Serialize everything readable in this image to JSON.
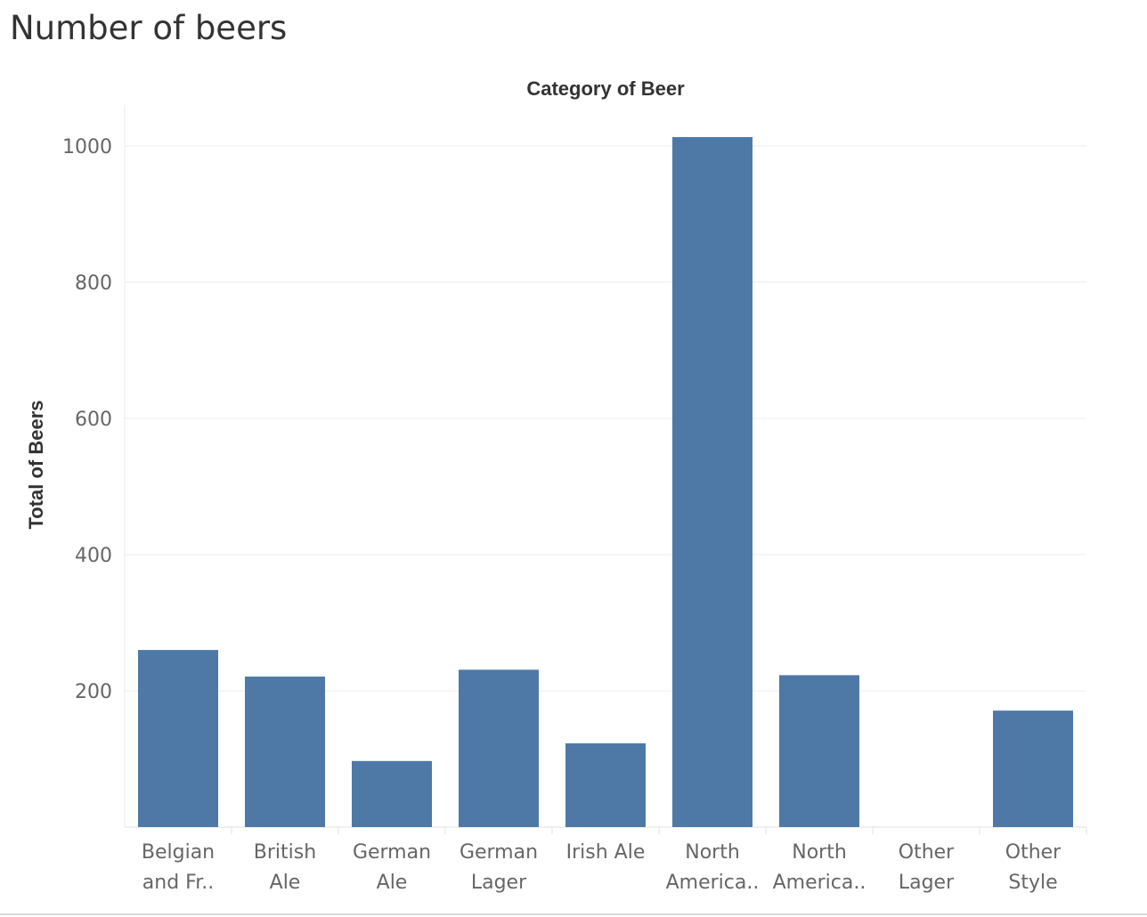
{
  "header": {
    "title": "Number of beers"
  },
  "chart_data": {
    "type": "bar",
    "title": "",
    "xlabel": "Category of Beer",
    "ylabel": "Total of Beers",
    "categories": [
      [
        "Belgian",
        "and Fr.."
      ],
      [
        "British",
        "Ale"
      ],
      [
        "German",
        "Ale"
      ],
      [
        "German",
        "Lager"
      ],
      [
        "Irish Ale"
      ],
      [
        "North",
        "America.."
      ],
      [
        "North",
        "America.."
      ],
      [
        "Other",
        "Lager"
      ],
      [
        "Other",
        "Style"
      ]
    ],
    "values": [
      260,
      221,
      97,
      231,
      123,
      1013,
      223,
      0,
      171
    ],
    "ylim": [
      0,
      1060
    ],
    "yticks": [
      200,
      400,
      600,
      800,
      1000
    ],
    "grid": true,
    "legend": "none",
    "colors": {
      "bar": "#4e79a7",
      "grid": "#ececec",
      "tick_text": "#666666",
      "axis_title": "#333333"
    }
  }
}
